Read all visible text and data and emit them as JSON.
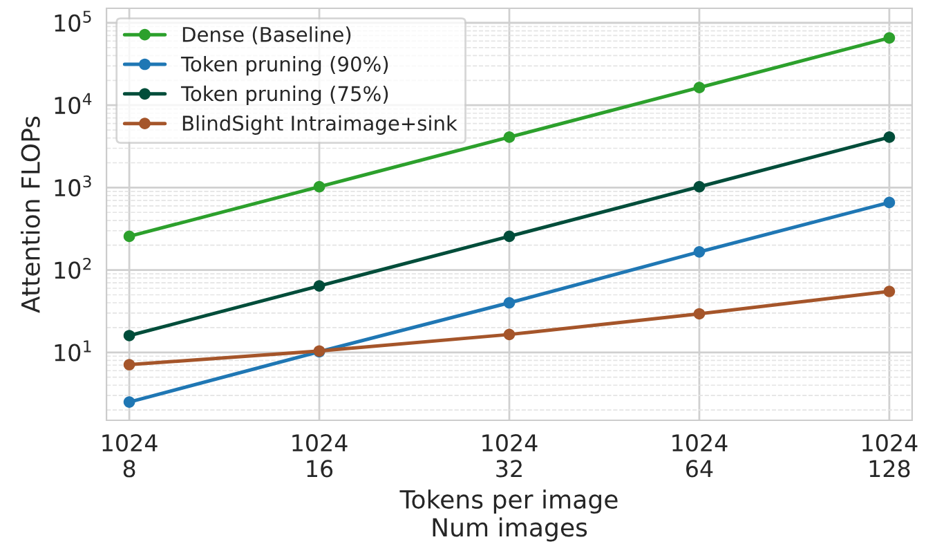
{
  "chart_data": {
    "type": "line",
    "xlabel": "Tokens per image\nNum images",
    "ylabel": "Attention FLOPs",
    "categories": [
      "1024\n8",
      "1024\n16",
      "1024\n32",
      "1024\n64",
      "1024\n128"
    ],
    "series": [
      {
        "name": "Dense (Baseline)",
        "color": "#2ca02c",
        "values": [
          256,
          1024,
          4096,
          16384,
          65536
        ]
      },
      {
        "name": "Token pruning (90%)",
        "color": "#1f77b4",
        "values": [
          2.5,
          10.2,
          40,
          166,
          660
        ]
      },
      {
        "name": "Token pruning (75%)",
        "color": "#004d3a",
        "values": [
          16,
          64,
          256,
          1024,
          4096
        ]
      },
      {
        "name": "BlindSight Intraimage+sink",
        "color": "#a5552a",
        "values": [
          7.1,
          10.4,
          16.5,
          29.4,
          55
        ]
      }
    ],
    "log": "y",
    "ylim": [
      1.5,
      150000
    ],
    "yticks": [
      {
        "value": 10,
        "label": "10$^{1}$"
      },
      {
        "value": 100,
        "label": "10$^{2}$"
      },
      {
        "value": 1000,
        "label": "10$^{3}$"
      },
      {
        "value": 10000,
        "label": "10$^{4}$"
      },
      {
        "value": 100000,
        "label": "10$^{5}$"
      }
    ],
    "grid": true,
    "legend": "top left",
    "marker": "circle",
    "line_style": "solid"
  }
}
